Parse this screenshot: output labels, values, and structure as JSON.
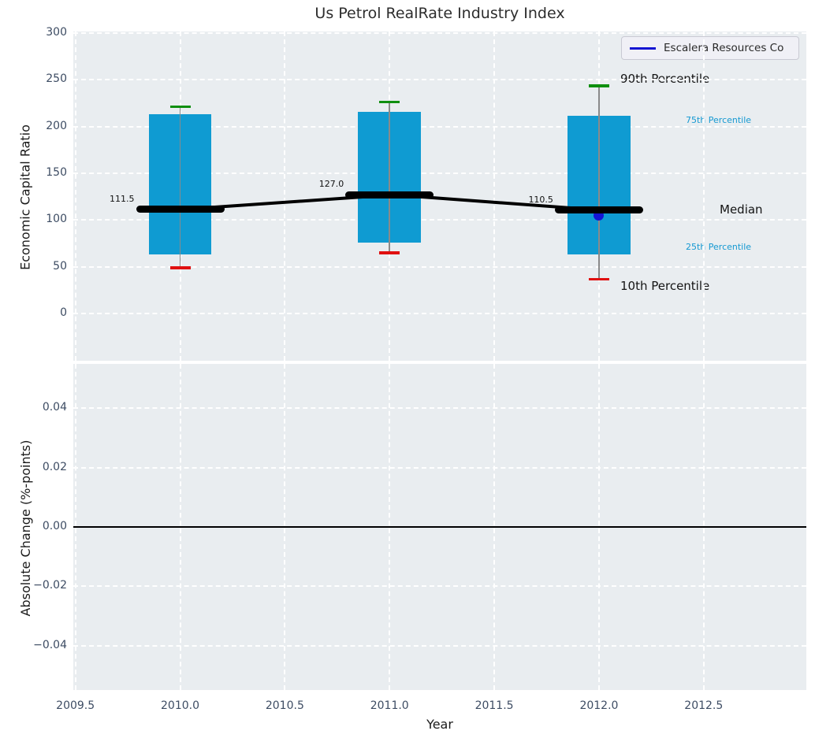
{
  "chart_data": {
    "type": "box",
    "title": "Us Petrol RealRate Industry Index",
    "xlabel": "Year",
    "x_tick_labels": [
      "2009.5",
      "2010.0",
      "2010.5",
      "2011.0",
      "2011.5",
      "2012.0",
      "2012.5"
    ],
    "x_tick_values": [
      2009.5,
      2010.0,
      2010.5,
      2011.0,
      2011.5,
      2012.0,
      2012.5
    ],
    "xlim": [
      2009.49,
      2012.99
    ],
    "legend": {
      "label": "Escalera Resources Co"
    },
    "top_subplot": {
      "ylabel": "Economic Capital Ratio",
      "ylim": [
        -50.5,
        301.5
      ],
      "yticks": [
        0,
        50,
        100,
        150,
        200,
        250,
        300
      ],
      "grid": "dashed-white",
      "boxes": [
        {
          "year": 2010,
          "p10": 49,
          "p25": 63,
          "median": 111.5,
          "p75": 213,
          "p90": 221,
          "median_label": "111.5"
        },
        {
          "year": 2011,
          "p10": 65,
          "p25": 76,
          "median": 127.0,
          "p75": 216,
          "p90": 226,
          "median_label": "127.0"
        },
        {
          "year": 2012,
          "p10": 37,
          "p25": 63,
          "median": 110.5,
          "p75": 211,
          "p90": 243,
          "median_label": "110.5"
        }
      ],
      "company_series": {
        "name": "Escalera Resources Co",
        "points": [
          {
            "year": 2012,
            "value": 105
          }
        ]
      },
      "annotations": {
        "p90": "90th Percentile",
        "p75": "75th Percentile",
        "median": "Median",
        "p25": "25th Percentile",
        "p10": "10th Percentile"
      }
    },
    "bottom_subplot": {
      "ylabel": "Absolute Change (%-points)",
      "ylim": [
        -0.055,
        0.055
      ],
      "yticks": [
        {
          "value": 0.04,
          "label": "0.04"
        },
        {
          "value": 0.02,
          "label": "0.02"
        },
        {
          "value": 0.0,
          "label": "0.00"
        },
        {
          "value": -0.02,
          "label": "−0.02"
        },
        {
          "value": -0.04,
          "label": "−0.04"
        }
      ],
      "zero_line": 0.0,
      "grid": "dashed-white"
    },
    "colors": {
      "bar": "#0f9bd2",
      "median_line": "#000000",
      "whisker": "#8a8a8a",
      "cap_top": "#0f8f0f",
      "cap_bottom": "#e01010",
      "company_blue": "#1414d2",
      "axes_background": "#e9edf0",
      "tick_text": "#3d4c63",
      "percentile_label_blue": "#1599d2"
    }
  }
}
